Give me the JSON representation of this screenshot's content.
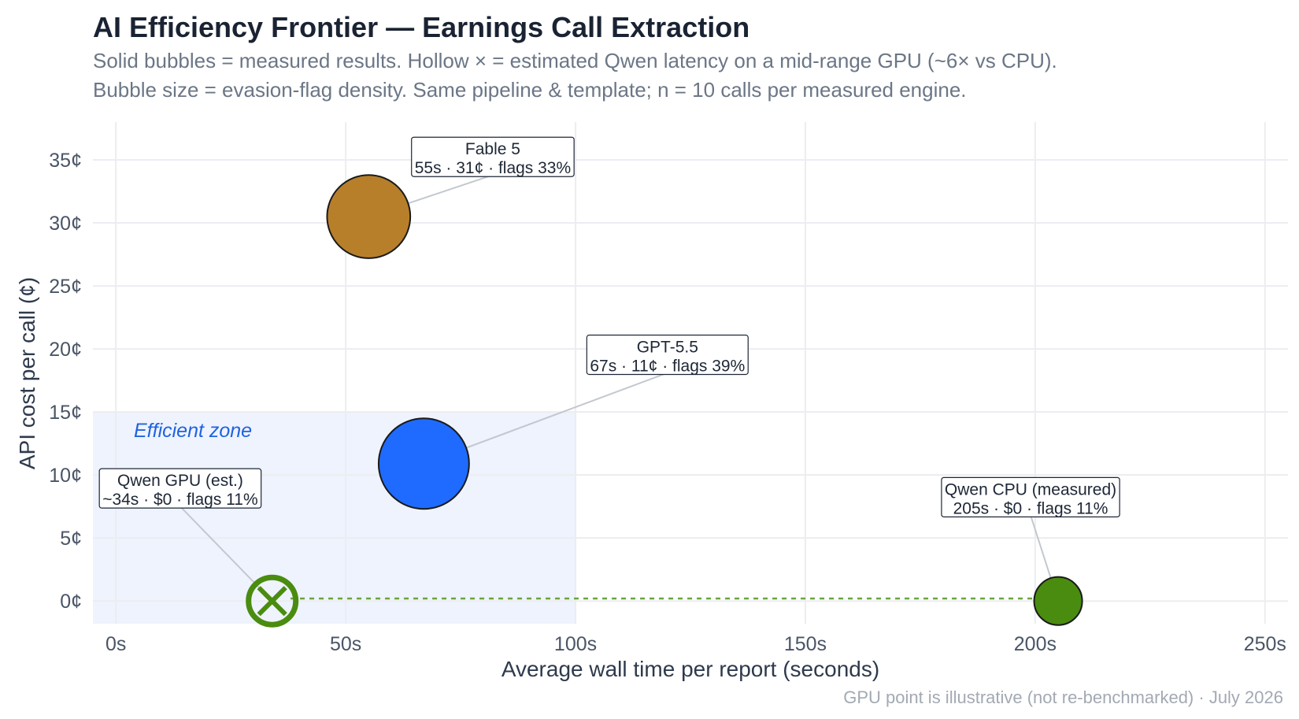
{
  "title": "AI Efficiency Frontier — Earnings Call Extraction",
  "subtitle_line1": "Solid bubbles = measured results. Hollow × = estimated Qwen latency on a mid-range GPU (~6× vs CPU).",
  "subtitle_line2": "Bubble size = evasion-flag density. Same pipeline & template; n = 10 calls per measured engine.",
  "footer": "GPU point is illustrative (not re-benchmarked) · July 2026",
  "chart_data": {
    "type": "scatter",
    "xlabel": "Average wall time per report (seconds)",
    "ylabel": "API cost per call (¢)",
    "xlim": [
      -5,
      255
    ],
    "ylim": [
      -1.8,
      38
    ],
    "x_ticks": [
      0,
      50,
      100,
      150,
      200,
      250
    ],
    "x_tick_labels": [
      "0s",
      "50s",
      "100s",
      "150s",
      "200s",
      "250s"
    ],
    "y_ticks": [
      0,
      5,
      10,
      15,
      20,
      25,
      30,
      35
    ],
    "y_tick_labels": [
      "0¢",
      "5¢",
      "10¢",
      "15¢",
      "20¢",
      "25¢",
      "30¢",
      "35¢"
    ],
    "grid": true,
    "efficient_zone": {
      "label": "Efficient zone",
      "x_max": 100,
      "y_max": 15,
      "color": "#eef3fd"
    },
    "points": [
      {
        "name": "Fable 5",
        "x": 55,
        "y": 30.5,
        "flags": 33,
        "color": "#b87f2a",
        "style": "solid",
        "label_line1": "Fable 5",
        "label_line2": "55s · 31¢ · flags 33%",
        "label_anchor": [
          82,
          35.3
        ]
      },
      {
        "name": "GPT-5.5",
        "x": 67,
        "y": 10.9,
        "flags": 39,
        "color": "#1f6bff",
        "style": "solid",
        "label_line1": "GPT-5.5",
        "label_line2": "67s · 11¢ · flags 39%",
        "label_anchor": [
          120,
          19.6
        ]
      },
      {
        "name": "Qwen CPU (measured)",
        "x": 205,
        "y": 0,
        "flags": 11,
        "color": "#4a8c0f",
        "style": "solid",
        "label_line1": "Qwen CPU (measured)",
        "label_line2": "205s · $0 · flags 11%",
        "label_anchor": [
          199,
          8.3
        ]
      },
      {
        "name": "Qwen GPU (est.)",
        "x": 34,
        "y": 0,
        "flags": 11,
        "color": "#4a8c0f",
        "style": "hollow",
        "label_line1": "Qwen GPU (est.)",
        "label_line2": "~34s · $0 · flags 11%",
        "label_anchor": [
          14,
          9.0
        ]
      }
    ],
    "connector": {
      "from_x": 38,
      "to_x": 200,
      "y": 0.2,
      "color": "#6aa53a",
      "style": "dashed"
    }
  }
}
